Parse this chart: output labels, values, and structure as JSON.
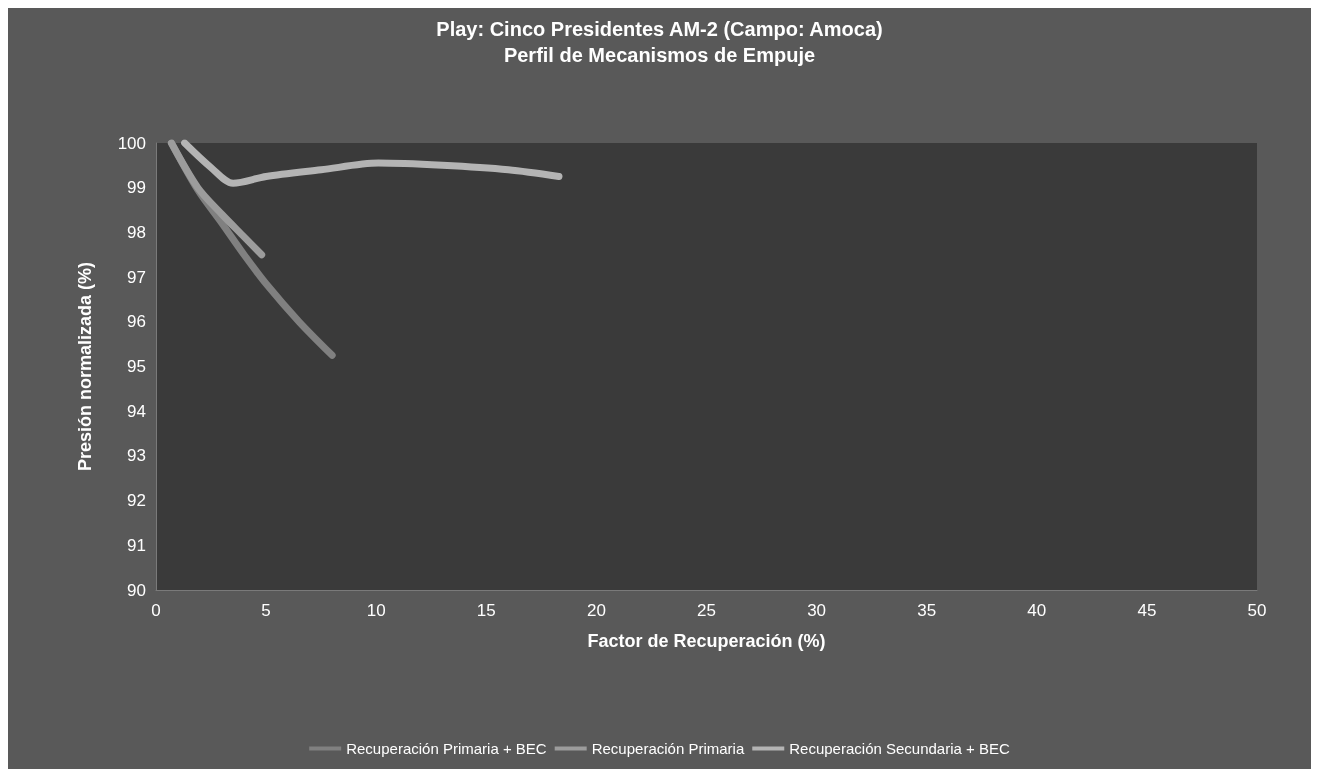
{
  "chart_data": {
    "type": "line",
    "title": "Play: Cinco Presidentes AM-2 (Campo: Amoca)",
    "subtitle": "Perfil de Mecanismos de Empuje",
    "xlabel": "Factor de Recuperación (%)",
    "ylabel": "Presión normalizada (%)",
    "xlim": [
      0,
      50
    ],
    "xticks": [
      0,
      5,
      10,
      15,
      20,
      25,
      30,
      35,
      40,
      45,
      50
    ],
    "ylim": [
      90,
      100
    ],
    "yticks": [
      90,
      91,
      92,
      93,
      94,
      95,
      96,
      97,
      98,
      99,
      100
    ],
    "grid": false,
    "legend": "bottom",
    "marker": "none",
    "line_style": "solid",
    "series": [
      {
        "name": "Recuperación Primaria + BEC",
        "color": "#808080",
        "x": [
          0.7,
          1.9,
          3,
          4,
          5,
          6.5,
          8
        ],
        "values": [
          100,
          98.95,
          98.2,
          97.5,
          96.85,
          96,
          95.25
        ]
      },
      {
        "name": "Recuperación Primaria",
        "color": "#9c9c9c",
        "x": [
          0.7,
          1.9,
          3,
          4,
          4.8
        ],
        "values": [
          100,
          99,
          98.4,
          97.9,
          97.5
        ]
      },
      {
        "name": "Recuperación Secundaria + BEC",
        "color": "#b4b4b4",
        "x": [
          1.3,
          2.5,
          3.5,
          5,
          7.5,
          10.1,
          13,
          16,
          18.3
        ],
        "values": [
          100,
          99.45,
          99.1,
          99.25,
          99.4,
          99.55,
          99.5,
          99.4,
          99.25
        ]
      }
    ]
  }
}
